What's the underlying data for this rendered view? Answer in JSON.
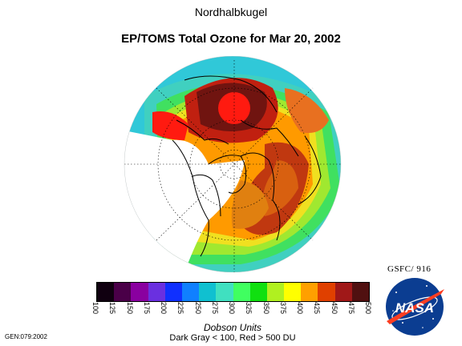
{
  "header": {
    "top_label": "Nordhalbkugel",
    "title": "EP/TOMS Total Ozone for Mar 20, 2002"
  },
  "credit": "GSFC/ 916",
  "colorbar": {
    "colors": [
      "#100010",
      "#4a0048",
      "#8a00a0",
      "#6a30e0",
      "#1030ff",
      "#1080ff",
      "#10c0d0",
      "#40e0c0",
      "#40ff60",
      "#10e010",
      "#b0f020",
      "#ffff00",
      "#ffa000",
      "#e04000",
      "#a01818",
      "#501010"
    ],
    "tick_labels": [
      "100",
      "125",
      "150",
      "175",
      "200",
      "225",
      "250",
      "275",
      "300",
      "325",
      "350",
      "375",
      "400",
      "425",
      "450",
      "475",
      "500"
    ],
    "units": "Dobson Units",
    "note": "Dark Gray < 100, Red > 500 DU"
  },
  "footer": {
    "gen_code": "GEN:079:2002"
  },
  "logo": {
    "text": "NASA"
  }
}
